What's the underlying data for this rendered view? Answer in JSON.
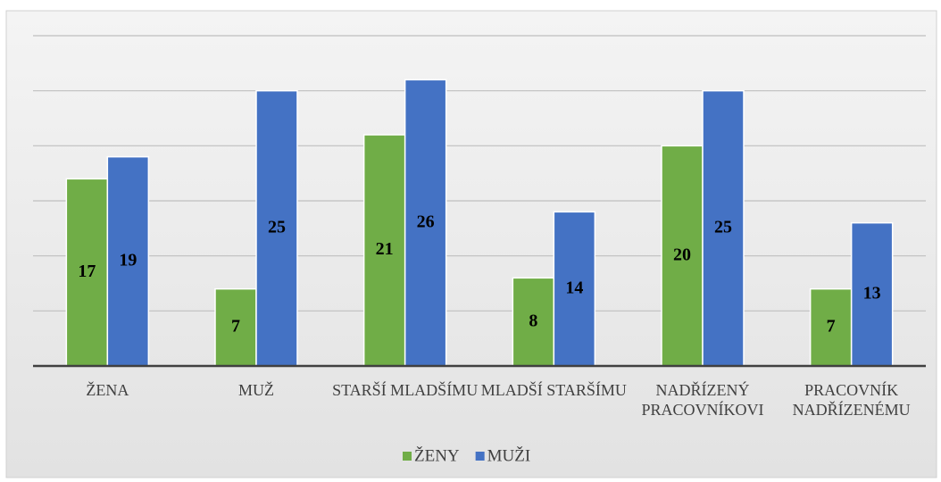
{
  "chart_data": {
    "type": "bar",
    "categories": [
      "ŽENA",
      "MUŽ",
      "STARŠÍ MLADŠÍMU",
      "MLADŠÍ STARŠÍMU",
      "NADŘÍZENÝ PRACOVNÍKOVI",
      "PRACOVNÍK NADŘÍZENÉMU"
    ],
    "series": [
      {
        "name": "ŽENY",
        "color": "#70ad47",
        "values": [
          17,
          7,
          21,
          8,
          20,
          7
        ]
      },
      {
        "name": "MUŽI",
        "color": "#4472c4",
        "values": [
          19,
          25,
          26,
          14,
          25,
          13
        ]
      }
    ],
    "ylim": [
      0,
      30
    ],
    "yticks": [
      0,
      5,
      10,
      15,
      20,
      25,
      30
    ],
    "grid": true,
    "legend": "bottom"
  }
}
